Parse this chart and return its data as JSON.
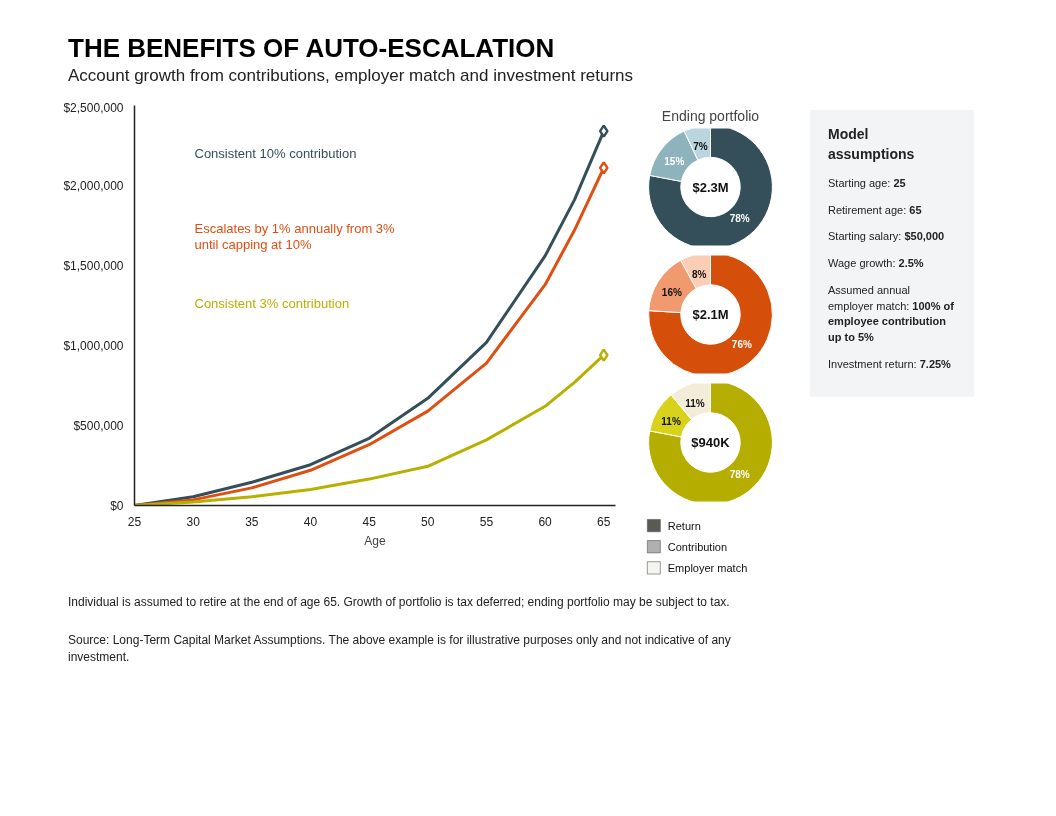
{
  "chart_data": [
    {
      "type": "line",
      "title": "THE BENEFITS OF AUTO-ESCALATION",
      "subtitle": "Account growth from contributions, employer match and investment returns",
      "xlabel": "Age",
      "x": [
        25,
        30,
        35,
        40,
        45,
        50,
        55,
        60,
        62.5,
        65
      ],
      "series": [
        {
          "name": "Consistent 10% contribution",
          "color": "#344f5a",
          "values": [
            0,
            55000,
            145000,
            255000,
            420000,
            670000,
            1020000,
            1560000,
            1910000,
            2340000
          ]
        },
        {
          "name": "Escalates by 1% annually from 3% until capping at 10%",
          "color": "#e04f12",
          "values": [
            0,
            35000,
            110000,
            220000,
            380000,
            590000,
            890000,
            1380000,
            1720000,
            2110000
          ]
        },
        {
          "name": "Consistent 3% contribution",
          "color": "#b8b000",
          "values": [
            0,
            22000,
            55000,
            100000,
            165000,
            245000,
            410000,
            620000,
            770000,
            940000
          ]
        },
        {
          "type": "scatter",
          "marker": "diamond",
          "color": "#344f5a",
          "values": [
            null,
            null,
            null,
            null,
            null,
            null,
            null,
            null,
            null,
            2340000
          ]
        },
        {
          "type": "scatter",
          "marker": "diamond",
          "color": "#e04f12",
          "values": [
            null,
            null,
            null,
            null,
            null,
            null,
            null,
            null,
            null,
            2110000
          ]
        },
        {
          "type": "scatter",
          "marker": "diamond",
          "color": "#b8b000",
          "values": [
            null,
            null,
            null,
            null,
            null,
            null,
            null,
            null,
            null,
            940000
          ]
        }
      ],
      "xlim": [
        25,
        66
      ],
      "xticks": [
        25,
        30,
        35,
        40,
        45,
        50,
        55,
        60,
        65
      ],
      "ylim": [
        0,
        2500000
      ],
      "yticks": [
        {
          "value": 0,
          "label": "$0"
        },
        {
          "value": 500000,
          "label": "$500,000"
        },
        {
          "value": 1000000,
          "label": "$1,000,000"
        },
        {
          "value": 1500000,
          "label": "$1,500,000"
        },
        {
          "value": 2000000,
          "label": "$2,000,000"
        },
        {
          "value": 2500000,
          "label": "$2,500,000"
        }
      ],
      "grid": false,
      "annotations": [
        "Individual is assumed to retire at the end of age 65. Growth of portfolio is tax deferred; ending portfolio may be subject to tax.",
        "Source: Long-Term Capital Market Assumptions. The above example is for illustrative purposes only and not indicative of any investment."
      ]
    },
    {
      "type": "donut",
      "title": "Ending portfolio",
      "categories": [
        null,
        null,
        null
      ],
      "values": [
        78,
        15,
        7
      ],
      "colors": [
        "#344f5a",
        "#8fb3bc",
        "#b9d6de"
      ],
      "value_labels": [
        "78%",
        "15%",
        "7%"
      ],
      "annotations": [
        "$2.3M"
      ]
    },
    {
      "type": "donut",
      "categories": [
        null,
        null,
        null
      ],
      "values": [
        76,
        16,
        8
      ],
      "colors": [
        "#d64f0a",
        "#f29a6f",
        "#fbcdb5"
      ],
      "value_labels": [
        "76%",
        "16%",
        "8%"
      ],
      "annotations": [
        "$2.1M"
      ]
    },
    {
      "type": "donut",
      "categories": [
        null,
        null,
        null
      ],
      "values": [
        78,
        11,
        11
      ],
      "colors": [
        "#b5ad00",
        "#d8d31a",
        "#f3ecd8"
      ],
      "value_labels": [
        "78%",
        "11%",
        "11%"
      ],
      "annotations": [
        "$940K"
      ]
    },
    {
      "type": "other",
      "categories": [
        "Return",
        "Contribution",
        "Employer match"
      ],
      "colors": [
        "#5a5a55",
        "#b0b0b0",
        "#f5f5f0"
      ]
    },
    {
      "type": "other",
      "title": "Model assumptions",
      "annotations": [
        "Starting age: 25",
        "Retirement age: 65",
        "Starting salary: $50,000",
        "Wage growth: 2.5%",
        "Assumed annual employer match: 100% of employee contribution up to 5%",
        "Investment return: 7.25%"
      ]
    }
  ]
}
